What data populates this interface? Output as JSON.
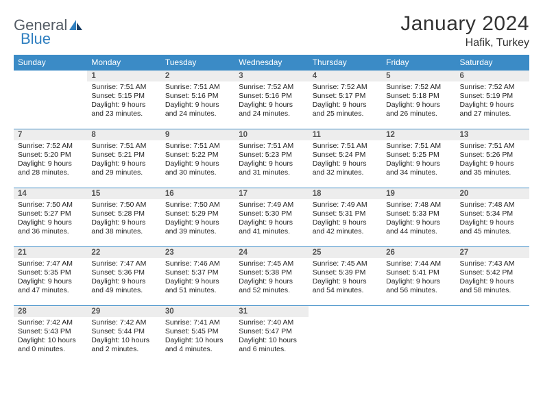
{
  "brand": {
    "word1": "General",
    "word2": "Blue"
  },
  "title": "January 2024",
  "subtitle": "Hafik, Turkey",
  "colors": {
    "header_bg": "#3b8bc6",
    "header_text": "#ffffff",
    "daynum_bg": "#ededed",
    "row_border": "#3b8bc6",
    "title_color": "#333333",
    "logo_gray": "#555d66",
    "logo_blue": "#2f7fc0"
  },
  "weekdays": [
    "Sunday",
    "Monday",
    "Tuesday",
    "Wednesday",
    "Thursday",
    "Friday",
    "Saturday"
  ],
  "weeks": [
    [
      null,
      {
        "n": "1",
        "sr": "Sunrise: 7:51 AM",
        "ss": "Sunset: 5:15 PM",
        "d1": "Daylight: 9 hours",
        "d2": "and 23 minutes."
      },
      {
        "n": "2",
        "sr": "Sunrise: 7:51 AM",
        "ss": "Sunset: 5:16 PM",
        "d1": "Daylight: 9 hours",
        "d2": "and 24 minutes."
      },
      {
        "n": "3",
        "sr": "Sunrise: 7:52 AM",
        "ss": "Sunset: 5:16 PM",
        "d1": "Daylight: 9 hours",
        "d2": "and 24 minutes."
      },
      {
        "n": "4",
        "sr": "Sunrise: 7:52 AM",
        "ss": "Sunset: 5:17 PM",
        "d1": "Daylight: 9 hours",
        "d2": "and 25 minutes."
      },
      {
        "n": "5",
        "sr": "Sunrise: 7:52 AM",
        "ss": "Sunset: 5:18 PM",
        "d1": "Daylight: 9 hours",
        "d2": "and 26 minutes."
      },
      {
        "n": "6",
        "sr": "Sunrise: 7:52 AM",
        "ss": "Sunset: 5:19 PM",
        "d1": "Daylight: 9 hours",
        "d2": "and 27 minutes."
      }
    ],
    [
      {
        "n": "7",
        "sr": "Sunrise: 7:52 AM",
        "ss": "Sunset: 5:20 PM",
        "d1": "Daylight: 9 hours",
        "d2": "and 28 minutes."
      },
      {
        "n": "8",
        "sr": "Sunrise: 7:51 AM",
        "ss": "Sunset: 5:21 PM",
        "d1": "Daylight: 9 hours",
        "d2": "and 29 minutes."
      },
      {
        "n": "9",
        "sr": "Sunrise: 7:51 AM",
        "ss": "Sunset: 5:22 PM",
        "d1": "Daylight: 9 hours",
        "d2": "and 30 minutes."
      },
      {
        "n": "10",
        "sr": "Sunrise: 7:51 AM",
        "ss": "Sunset: 5:23 PM",
        "d1": "Daylight: 9 hours",
        "d2": "and 31 minutes."
      },
      {
        "n": "11",
        "sr": "Sunrise: 7:51 AM",
        "ss": "Sunset: 5:24 PM",
        "d1": "Daylight: 9 hours",
        "d2": "and 32 minutes."
      },
      {
        "n": "12",
        "sr": "Sunrise: 7:51 AM",
        "ss": "Sunset: 5:25 PM",
        "d1": "Daylight: 9 hours",
        "d2": "and 34 minutes."
      },
      {
        "n": "13",
        "sr": "Sunrise: 7:51 AM",
        "ss": "Sunset: 5:26 PM",
        "d1": "Daylight: 9 hours",
        "d2": "and 35 minutes."
      }
    ],
    [
      {
        "n": "14",
        "sr": "Sunrise: 7:50 AM",
        "ss": "Sunset: 5:27 PM",
        "d1": "Daylight: 9 hours",
        "d2": "and 36 minutes."
      },
      {
        "n": "15",
        "sr": "Sunrise: 7:50 AM",
        "ss": "Sunset: 5:28 PM",
        "d1": "Daylight: 9 hours",
        "d2": "and 38 minutes."
      },
      {
        "n": "16",
        "sr": "Sunrise: 7:50 AM",
        "ss": "Sunset: 5:29 PM",
        "d1": "Daylight: 9 hours",
        "d2": "and 39 minutes."
      },
      {
        "n": "17",
        "sr": "Sunrise: 7:49 AM",
        "ss": "Sunset: 5:30 PM",
        "d1": "Daylight: 9 hours",
        "d2": "and 41 minutes."
      },
      {
        "n": "18",
        "sr": "Sunrise: 7:49 AM",
        "ss": "Sunset: 5:31 PM",
        "d1": "Daylight: 9 hours",
        "d2": "and 42 minutes."
      },
      {
        "n": "19",
        "sr": "Sunrise: 7:48 AM",
        "ss": "Sunset: 5:33 PM",
        "d1": "Daylight: 9 hours",
        "d2": "and 44 minutes."
      },
      {
        "n": "20",
        "sr": "Sunrise: 7:48 AM",
        "ss": "Sunset: 5:34 PM",
        "d1": "Daylight: 9 hours",
        "d2": "and 45 minutes."
      }
    ],
    [
      {
        "n": "21",
        "sr": "Sunrise: 7:47 AM",
        "ss": "Sunset: 5:35 PM",
        "d1": "Daylight: 9 hours",
        "d2": "and 47 minutes."
      },
      {
        "n": "22",
        "sr": "Sunrise: 7:47 AM",
        "ss": "Sunset: 5:36 PM",
        "d1": "Daylight: 9 hours",
        "d2": "and 49 minutes."
      },
      {
        "n": "23",
        "sr": "Sunrise: 7:46 AM",
        "ss": "Sunset: 5:37 PM",
        "d1": "Daylight: 9 hours",
        "d2": "and 51 minutes."
      },
      {
        "n": "24",
        "sr": "Sunrise: 7:45 AM",
        "ss": "Sunset: 5:38 PM",
        "d1": "Daylight: 9 hours",
        "d2": "and 52 minutes."
      },
      {
        "n": "25",
        "sr": "Sunrise: 7:45 AM",
        "ss": "Sunset: 5:39 PM",
        "d1": "Daylight: 9 hours",
        "d2": "and 54 minutes."
      },
      {
        "n": "26",
        "sr": "Sunrise: 7:44 AM",
        "ss": "Sunset: 5:41 PM",
        "d1": "Daylight: 9 hours",
        "d2": "and 56 minutes."
      },
      {
        "n": "27",
        "sr": "Sunrise: 7:43 AM",
        "ss": "Sunset: 5:42 PM",
        "d1": "Daylight: 9 hours",
        "d2": "and 58 minutes."
      }
    ],
    [
      {
        "n": "28",
        "sr": "Sunrise: 7:42 AM",
        "ss": "Sunset: 5:43 PM",
        "d1": "Daylight: 10 hours",
        "d2": "and 0 minutes."
      },
      {
        "n": "29",
        "sr": "Sunrise: 7:42 AM",
        "ss": "Sunset: 5:44 PM",
        "d1": "Daylight: 10 hours",
        "d2": "and 2 minutes."
      },
      {
        "n": "30",
        "sr": "Sunrise: 7:41 AM",
        "ss": "Sunset: 5:45 PM",
        "d1": "Daylight: 10 hours",
        "d2": "and 4 minutes."
      },
      {
        "n": "31",
        "sr": "Sunrise: 7:40 AM",
        "ss": "Sunset: 5:47 PM",
        "d1": "Daylight: 10 hours",
        "d2": "and 6 minutes."
      },
      null,
      null,
      null
    ]
  ]
}
